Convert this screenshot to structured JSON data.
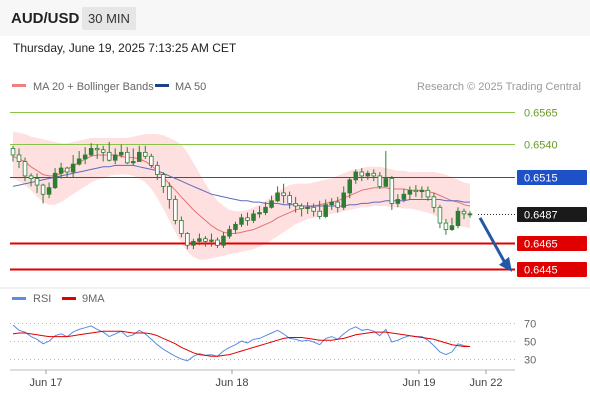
{
  "header": {
    "symbol": "AUD/USD",
    "timeframe": "30 MIN",
    "datetime": "Thursday, June 19, 2025 7:13:25 AM CET"
  },
  "legend": {
    "ma20_bb": "MA 20 + Bollinger Bands",
    "ma50": "MA 50",
    "credit": "Research © 2025 Trading Central",
    "rsi": "RSI",
    "ma9": "9MA"
  },
  "colors": {
    "candle": "#2e7d32",
    "bb_fill": "#ffd6d6",
    "ma20": "#e57373",
    "ma50": "#5c6bc0",
    "green_level": "#8bc34a",
    "pivot": "#1e50c8",
    "support": "#e00000",
    "arrow": "#2458a6",
    "rsi": "#5b8de0",
    "rsi_ma": "#e00000"
  },
  "chart_data": [
    {
      "type": "candlestick",
      "x_ticks": [
        "Jun 17",
        "Jun 18",
        "Jun 19",
        "Jun 22"
      ],
      "y_range": [
        0.6438,
        0.6574
      ],
      "levels": [
        {
          "value": 0.6565,
          "label": "0.6565",
          "kind": "resistance"
        },
        {
          "value": 0.654,
          "label": "0.6540",
          "kind": "resistance"
        },
        {
          "value": 0.6515,
          "label": "0.6515",
          "kind": "pivot"
        },
        {
          "value": 0.6487,
          "label": "0.6487",
          "kind": "last"
        },
        {
          "value": 0.6465,
          "label": "0.6465",
          "kind": "support"
        },
        {
          "value": 0.6445,
          "label": "0.6445",
          "kind": "support"
        }
      ],
      "forecast_arrow": {
        "from": 0.6484,
        "to": 0.6445
      },
      "candles": [
        [
          0.6537,
          0.6532,
          0.6539,
          0.6527
        ],
        [
          0.6532,
          0.6527,
          0.6537,
          0.6522
        ],
        [
          0.6527,
          0.6516,
          0.653,
          0.6512
        ],
        [
          0.6516,
          0.6514,
          0.6518,
          0.6508
        ],
        [
          0.6514,
          0.6509,
          0.6518,
          0.6503
        ],
        [
          0.6509,
          0.6502,
          0.651,
          0.6495
        ],
        [
          0.6502,
          0.6507,
          0.6511,
          0.6499
        ],
        [
          0.6507,
          0.6518,
          0.6522,
          0.6506
        ],
        [
          0.6518,
          0.6522,
          0.6526,
          0.6514
        ],
        [
          0.6522,
          0.6519,
          0.6523,
          0.6515
        ],
        [
          0.6519,
          0.6525,
          0.6532,
          0.6515
        ],
        [
          0.6525,
          0.6529,
          0.6535,
          0.6524
        ],
        [
          0.6529,
          0.6532,
          0.6538,
          0.6525
        ],
        [
          0.6532,
          0.6537,
          0.6541,
          0.6531
        ],
        [
          0.6537,
          0.6536,
          0.654,
          0.6529
        ],
        [
          0.6536,
          0.6534,
          0.6539,
          0.6527
        ],
        [
          0.6534,
          0.6528,
          0.6542,
          0.6527
        ],
        [
          0.6528,
          0.6532,
          0.6537,
          0.6525
        ],
        [
          0.6532,
          0.6534,
          0.654,
          0.653
        ],
        [
          0.6534,
          0.6526,
          0.6538,
          0.6525
        ],
        [
          0.6526,
          0.6527,
          0.6537,
          0.6524
        ],
        [
          0.6527,
          0.6534,
          0.6539,
          0.6527
        ],
        [
          0.6534,
          0.6531,
          0.6539,
          0.6529
        ],
        [
          0.6531,
          0.6524,
          0.6533,
          0.6522
        ],
        [
          0.6524,
          0.6517,
          0.6527,
          0.6513
        ],
        [
          0.6517,
          0.6508,
          0.6519,
          0.6503
        ],
        [
          0.6508,
          0.6498,
          0.6511,
          0.6491
        ],
        [
          0.6498,
          0.6482,
          0.6501,
          0.6479
        ],
        [
          0.6482,
          0.6472,
          0.6485,
          0.6469
        ],
        [
          0.6472,
          0.6463,
          0.6473,
          0.646
        ],
        [
          0.6463,
          0.6466,
          0.6468,
          0.646
        ],
        [
          0.6466,
          0.6468,
          0.6472,
          0.6463
        ],
        [
          0.6468,
          0.6466,
          0.647,
          0.6462
        ],
        [
          0.6466,
          0.6467,
          0.6472,
          0.6462
        ],
        [
          0.6467,
          0.6463,
          0.6469,
          0.6461
        ],
        [
          0.6463,
          0.647,
          0.6473,
          0.6461
        ],
        [
          0.647,
          0.6475,
          0.6478,
          0.6468
        ],
        [
          0.6475,
          0.6479,
          0.6481,
          0.6472
        ],
        [
          0.6479,
          0.6484,
          0.6487,
          0.6477
        ],
        [
          0.6484,
          0.6482,
          0.6488,
          0.6478
        ],
        [
          0.6482,
          0.6487,
          0.649,
          0.648
        ],
        [
          0.6487,
          0.6488,
          0.6493,
          0.6484
        ],
        [
          0.6488,
          0.6492,
          0.6496,
          0.6486
        ],
        [
          0.6492,
          0.6497,
          0.6501,
          0.6491
        ],
        [
          0.6497,
          0.6503,
          0.6508,
          0.6496
        ],
        [
          0.6503,
          0.6501,
          0.651,
          0.6495
        ],
        [
          0.6501,
          0.6495,
          0.6504,
          0.6491
        ],
        [
          0.6495,
          0.6493,
          0.65,
          0.6488
        ],
        [
          0.6493,
          0.6491,
          0.6495,
          0.6485
        ],
        [
          0.6491,
          0.6492,
          0.6496,
          0.6487
        ],
        [
          0.6492,
          0.6489,
          0.6495,
          0.6485
        ],
        [
          0.6489,
          0.6485,
          0.6497,
          0.6483
        ],
        [
          0.6485,
          0.6494,
          0.6498,
          0.6484
        ],
        [
          0.6494,
          0.6496,
          0.6499,
          0.649
        ],
        [
          0.6496,
          0.6492,
          0.65,
          0.6488
        ],
        [
          0.6492,
          0.6503,
          0.6508,
          0.649
        ],
        [
          0.6503,
          0.6513,
          0.6515,
          0.6499
        ],
        [
          0.6513,
          0.6519,
          0.6521,
          0.651
        ],
        [
          0.6519,
          0.6516,
          0.6522,
          0.6512
        ],
        [
          0.6516,
          0.6518,
          0.652,
          0.6513
        ],
        [
          0.6518,
          0.6516,
          0.6521,
          0.6512
        ],
        [
          0.6516,
          0.6508,
          0.6519,
          0.6506
        ],
        [
          0.6508,
          0.6514,
          0.6535,
          0.6508
        ],
        [
          0.6514,
          0.6495,
          0.6516,
          0.649
        ],
        [
          0.6495,
          0.6498,
          0.6502,
          0.6492
        ],
        [
          0.6498,
          0.6502,
          0.6506,
          0.6496
        ],
        [
          0.6502,
          0.6505,
          0.6508,
          0.6498
        ],
        [
          0.6505,
          0.6504,
          0.6509,
          0.65
        ],
        [
          0.6504,
          0.6505,
          0.6508,
          0.6499
        ],
        [
          0.6505,
          0.65,
          0.6508,
          0.6497
        ],
        [
          0.65,
          0.6492,
          0.6503,
          0.6488
        ],
        [
          0.6492,
          0.648,
          0.6494,
          0.6476
        ],
        [
          0.648,
          0.6475,
          0.6483,
          0.6471
        ],
        [
          0.6475,
          0.6478,
          0.6484,
          0.6474
        ],
        [
          0.6478,
          0.6489,
          0.6492,
          0.6476
        ],
        [
          0.6489,
          0.6487,
          0.6491,
          0.6483
        ],
        [
          0.6487,
          0.6487,
          0.6489,
          0.6484
        ]
      ],
      "ma20": [
        0.6531,
        0.6529,
        0.6527,
        0.6523,
        0.652,
        0.6517,
        0.6516,
        0.6516,
        0.6518,
        0.6521,
        0.6524,
        0.6526,
        0.6529,
        0.6531,
        0.6532,
        0.6532,
        0.6532,
        0.6532,
        0.6531,
        0.653,
        0.653,
        0.6529,
        0.6527,
        0.6524,
        0.652,
        0.6515,
        0.651,
        0.6505,
        0.65,
        0.6495,
        0.649,
        0.6486,
        0.6482,
        0.6478,
        0.6475,
        0.6473,
        0.6472,
        0.6472,
        0.6473,
        0.6474,
        0.6475,
        0.6477,
        0.6479,
        0.6481,
        0.6484,
        0.6486,
        0.6488,
        0.649,
        0.6491,
        0.6492,
        0.6493,
        0.6494,
        0.6495,
        0.6496,
        0.6497,
        0.6499,
        0.6501,
        0.6503,
        0.6505,
        0.6506,
        0.6507,
        0.6507,
        0.6507,
        0.6506,
        0.6506,
        0.6506,
        0.6505,
        0.6505,
        0.6505,
        0.6504,
        0.6503,
        0.6501,
        0.6499,
        0.6497,
        0.6496,
        0.6494,
        0.6493
      ],
      "ma20_upper": [
        0.655,
        0.6549,
        0.6548,
        0.6546,
        0.6545,
        0.6544,
        0.6543,
        0.6542,
        0.6541,
        0.6541,
        0.6542,
        0.6543,
        0.6544,
        0.6545,
        0.6545,
        0.6545,
        0.6545,
        0.6545,
        0.6545,
        0.6545,
        0.6546,
        0.6547,
        0.6548,
        0.6548,
        0.6548,
        0.6547,
        0.6545,
        0.6543,
        0.654,
        0.6534,
        0.6526,
        0.6518,
        0.651,
        0.6503,
        0.6497,
        0.6493,
        0.649,
        0.6489,
        0.6489,
        0.649,
        0.6492,
        0.6494,
        0.6497,
        0.65,
        0.6504,
        0.6507,
        0.6509,
        0.651,
        0.651,
        0.651,
        0.6511,
        0.6512,
        0.6513,
        0.6514,
        0.6516,
        0.6518,
        0.652,
        0.6521,
        0.6522,
        0.6523,
        0.6523,
        0.6523,
        0.6522,
        0.6521,
        0.652,
        0.652,
        0.6519,
        0.6519,
        0.6519,
        0.6519,
        0.6519,
        0.6518,
        0.6517,
        0.6515,
        0.6513,
        0.6511,
        0.651
      ],
      "ma20_lower": [
        0.6514,
        0.6512,
        0.6509,
        0.6505,
        0.65,
        0.6496,
        0.6494,
        0.6494,
        0.6496,
        0.6499,
        0.6502,
        0.6505,
        0.6508,
        0.6511,
        0.6513,
        0.6514,
        0.6516,
        0.6517,
        0.6517,
        0.6517,
        0.6516,
        0.6514,
        0.6511,
        0.6506,
        0.6499,
        0.6491,
        0.6482,
        0.6473,
        0.6465,
        0.6458,
        0.6454,
        0.6452,
        0.6452,
        0.6453,
        0.6454,
        0.6455,
        0.6456,
        0.6457,
        0.6458,
        0.6459,
        0.646,
        0.6462,
        0.6464,
        0.6467,
        0.647,
        0.6473,
        0.6476,
        0.6479,
        0.6481,
        0.6483,
        0.6484,
        0.6485,
        0.6486,
        0.6487,
        0.6488,
        0.6489,
        0.649,
        0.6491,
        0.6492,
        0.6492,
        0.6493,
        0.6493,
        0.6493,
        0.6492,
        0.6492,
        0.6491,
        0.6491,
        0.649,
        0.6489,
        0.6488,
        0.6486,
        0.6484,
        0.6481,
        0.6479,
        0.6478,
        0.6477,
        0.6476
      ],
      "ma50": [
        0.6508,
        0.6509,
        0.651,
        0.6511,
        0.6512,
        0.6513,
        0.6514,
        0.6515,
        0.6516,
        0.6517,
        0.6518,
        0.6519,
        0.652,
        0.6521,
        0.6522,
        0.6523,
        0.6523,
        0.6524,
        0.6524,
        0.6524,
        0.6524,
        0.6523,
        0.6522,
        0.6521,
        0.652,
        0.6518,
        0.6516,
        0.6514,
        0.6512,
        0.651,
        0.6508,
        0.6506,
        0.6504,
        0.6502,
        0.6501,
        0.65,
        0.6499,
        0.6498,
        0.6497,
        0.6497,
        0.6496,
        0.6496,
        0.6495,
        0.6495,
        0.6495,
        0.6494,
        0.6494,
        0.6494,
        0.6493,
        0.6493,
        0.6493,
        0.6493,
        0.6493,
        0.6493,
        0.6493,
        0.6493,
        0.6494,
        0.6494,
        0.6495,
        0.6495,
        0.6496,
        0.6496,
        0.6497,
        0.6497,
        0.6497,
        0.6497,
        0.6498,
        0.6498,
        0.6498,
        0.6498,
        0.6498,
        0.6498,
        0.6497,
        0.6497,
        0.6497,
        0.6496,
        0.6496
      ]
    },
    {
      "type": "line",
      "y_ticks": [
        70,
        50,
        30
      ],
      "y_range": [
        20,
        78
      ],
      "series": [
        {
          "name": "RSI",
          "values": [
            68,
            62,
            60,
            55,
            52,
            47,
            50,
            56,
            58,
            55,
            60,
            63,
            65,
            67,
            63,
            60,
            55,
            58,
            61,
            55,
            57,
            62,
            58,
            52,
            46,
            41,
            37,
            33,
            30,
            28,
            33,
            36,
            34,
            35,
            33,
            39,
            43,
            46,
            50,
            48,
            52,
            53,
            56,
            59,
            62,
            58,
            53,
            52,
            50,
            51,
            49,
            46,
            53,
            55,
            52,
            58,
            63,
            66,
            62,
            63,
            61,
            56,
            63,
            49,
            51,
            54,
            56,
            55,
            55,
            51,
            45,
            38,
            35,
            38,
            47,
            45,
            44
          ]
        },
        {
          "name": "9MA",
          "values": [
            58,
            59,
            59,
            58,
            57,
            56,
            55,
            55,
            55,
            55,
            56,
            57,
            58,
            59,
            60,
            61,
            61,
            61,
            61,
            60,
            59,
            59,
            59,
            58,
            56,
            53,
            50,
            47,
            43,
            40,
            37,
            35,
            34,
            33,
            33,
            34,
            35,
            37,
            39,
            41,
            43,
            45,
            47,
            49,
            51,
            53,
            54,
            54,
            54,
            53,
            52,
            51,
            51,
            51,
            52,
            53,
            55,
            57,
            58,
            59,
            60,
            60,
            60,
            59,
            58,
            57,
            56,
            55,
            54,
            53,
            52,
            50,
            48,
            46,
            45,
            44,
            44
          ]
        }
      ]
    }
  ]
}
